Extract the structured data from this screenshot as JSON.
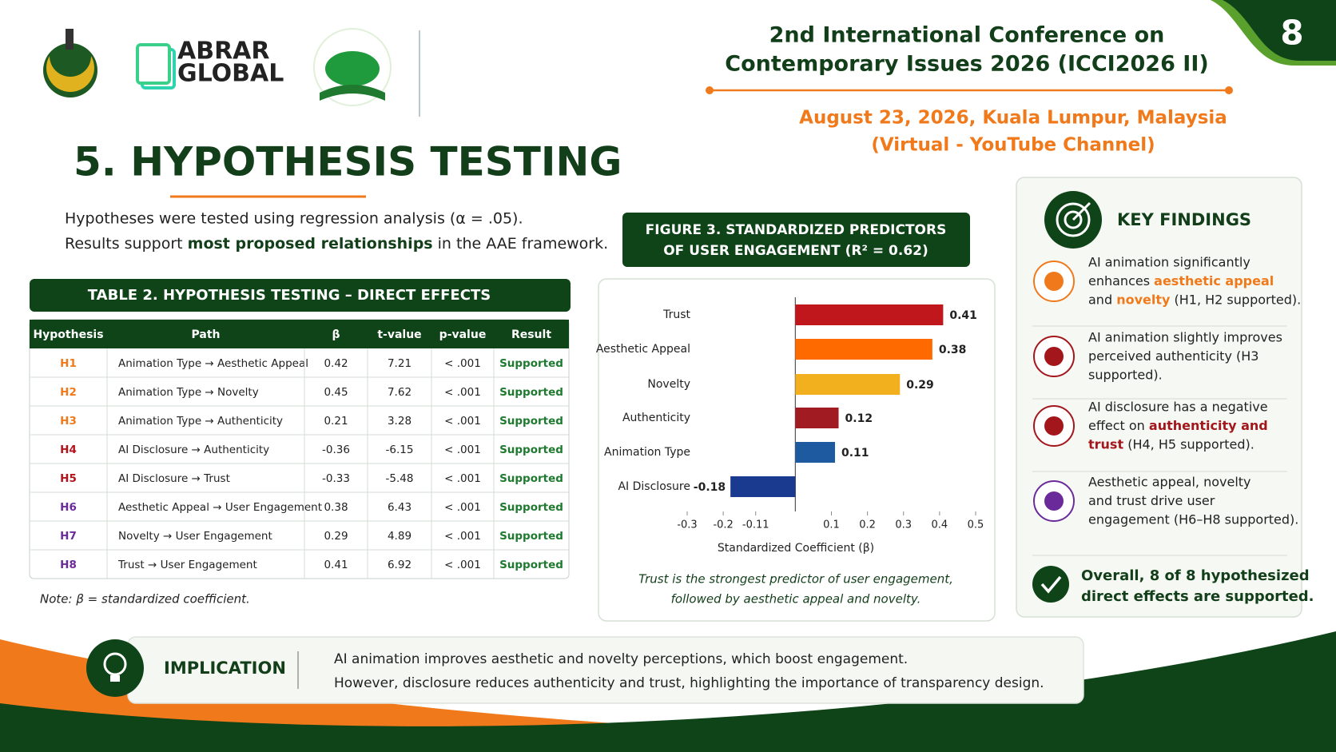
{
  "logo": {
    "text_top": "ABRAR",
    "text_bottom": "GLOBAL"
  },
  "header": {
    "title_lines": [
      "2nd International Conference on",
      "Contemporary Issues 2026 (ICCI2026 II)"
    ],
    "date_lines": [
      "August 23, 2026, Kuala Lumpur, Malaysia",
      "(Virtual - YouTube Channel)"
    ],
    "page_number": "8"
  },
  "section_title": "5. HYPOTHESIS TESTING",
  "intro": {
    "line1": "Hypotheses were tested using regression analysis (α = .05).",
    "line2": [
      "Results support ",
      "most proposed relationships",
      " in the AAE framework."
    ]
  },
  "table": {
    "title": "TABLE 2. HYPOTHESIS TESTING – DIRECT EFFECTS",
    "header": [
      "Hypothesis",
      "Path",
      "β",
      "t-value",
      "p-value",
      "Result"
    ],
    "rows": [
      [
        "H1",
        "Animation Type → Aesthetic Appeal",
        "0.42",
        "7.21",
        "< .001",
        "Supported"
      ],
      [
        "H2",
        "Animation Type → Novelty",
        "0.45",
        "7.62",
        "< .001",
        "Supported"
      ],
      [
        "H3",
        "Animation Type → Authenticity",
        "0.21",
        "3.28",
        "< .001",
        "Supported"
      ],
      [
        "H4",
        "AI Disclosure → Authenticity",
        "-0.36",
        "-6.15",
        "< .001",
        "Supported"
      ],
      [
        "H5",
        "AI Disclosure → Trust",
        "-0.33",
        "-5.48",
        "< .001",
        "Supported"
      ],
      [
        "H6",
        "Aesthetic Appeal → User Engagement",
        "0.38",
        "6.43",
        "< .001",
        "Supported"
      ],
      [
        "H7",
        "Novelty → User Engagement",
        "0.29",
        "4.89",
        "< .001",
        "Supported"
      ],
      [
        "H8",
        "Trust → User Engagement",
        "0.41",
        "6.92",
        "< .001",
        "Supported"
      ]
    ],
    "hypothesis_colors": [
      "#f07a1b",
      "#f07a1b",
      "#f07a1b",
      "#b3141c",
      "#b3141c",
      "#6b2a9a",
      "#6b2a9a",
      "#6b2a9a"
    ],
    "note": "Note: β = standardized coefficient."
  },
  "figure_title_lines": [
    "FIGURE 3. STANDARDIZED PREDICTORS",
    "OF USER ENGAGEMENT (R² = 0.62)"
  ],
  "chart_data": {
    "type": "hbar",
    "categories": [
      "Trust",
      "Aesthetic Appeal",
      "Novelty",
      "Authenticity",
      "Animation Type",
      "AI Disclosure"
    ],
    "values": [
      0.41,
      0.38,
      0.29,
      0.12,
      0.11,
      -0.18
    ],
    "colors": [
      "#c0171c",
      "#ff6a00",
      "#f2b01e",
      "#a01c22",
      "#1e5aa0",
      "#1a3a8f"
    ],
    "xlim": [
      -0.3,
      0.5
    ],
    "xticks": [
      -0.3,
      -0.2,
      -0.11,
      0.1,
      0.2,
      0.3,
      0.4,
      0.5
    ],
    "xlabel": "Standardized Coefficient (β)",
    "caption_lines": [
      "Trust is the strongest predictor of user engagement,",
      "followed by aesthetic appeal and novelty."
    ]
  },
  "key_findings": {
    "title": "KEY FINDINGS",
    "items": [
      {
        "lines": [
          [
            "AI animation significantly"
          ],
          [
            "enhances ",
            {
              "t": "aesthetic appeal",
              "hl": "#f07a1b"
            }
          ],
          [
            {
              "t": "and ",
              "hl": null
            },
            {
              "t": "novelty",
              "hl": "#f07a1b"
            },
            " (H1, H2 supported)."
          ]
        ]
      },
      {
        "lines": [
          [
            "AI animation slightly improves"
          ],
          [
            "perceived authenticity (H3"
          ],
          [
            "supported)."
          ]
        ]
      },
      {
        "lines": [
          [
            "AI disclosure has a negative"
          ],
          [
            "effect on ",
            {
              "t": "authenticity and",
              "hl": "#a3171c"
            }
          ],
          [
            {
              "t": "trust",
              "hl": "#a3171c"
            },
            " (H4, H5 supported)."
          ]
        ]
      },
      {
        "lines": [
          [
            "Aesthetic appeal, novelty"
          ],
          [
            "and trust drive user"
          ],
          [
            "engagement (H6–H8 supported)."
          ]
        ]
      }
    ],
    "overall_lines": [
      "Overall, 8 of 8 hypothesized",
      "direct effects are supported."
    ]
  },
  "implication": {
    "label": "IMPLICATION",
    "lines": [
      "AI animation improves aesthetic and novelty perceptions, which boost engagement.",
      "However, disclosure reduces authenticity and trust, highlighting the importance of transparency design."
    ]
  }
}
